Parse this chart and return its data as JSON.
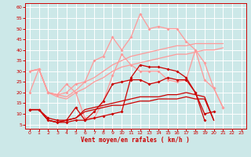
{
  "bg_color": "#cce8e8",
  "grid_color": "#ffffff",
  "xlabel": "Vent moyen/en rafales ( km/h )",
  "xlabel_color": "#cc0000",
  "tick_color": "#cc0000",
  "xlim": [
    -0.5,
    23.5
  ],
  "ylim": [
    3,
    62
  ],
  "yticks": [
    5,
    10,
    15,
    20,
    25,
    30,
    35,
    40,
    45,
    50,
    55,
    60
  ],
  "xticks": [
    0,
    1,
    2,
    3,
    4,
    5,
    6,
    7,
    8,
    9,
    10,
    11,
    12,
    13,
    14,
    15,
    16,
    17,
    18,
    19,
    20,
    21,
    22,
    23
  ],
  "lines": [
    {
      "x": [
        0,
        1,
        2,
        3,
        4,
        5,
        6,
        7,
        8,
        9,
        10,
        11,
        12,
        13,
        14,
        15,
        16,
        17,
        18,
        19,
        20,
        21,
        22,
        23
      ],
      "y": [
        30,
        31,
        20,
        19,
        18,
        21,
        25,
        27,
        30,
        33,
        35,
        37,
        38,
        39,
        40,
        41,
        42,
        42,
        43,
        43,
        43,
        43,
        null,
        null
      ],
      "color": "#ff9999",
      "marker": null,
      "markersize": 0,
      "linewidth": 0.9,
      "zorder": 2
    },
    {
      "x": [
        0,
        1,
        2,
        3,
        4,
        5,
        6,
        7,
        8,
        9,
        10,
        11,
        12,
        13,
        14,
        15,
        16,
        17,
        18,
        19,
        20,
        21,
        22,
        23
      ],
      "y": [
        30,
        31,
        20,
        18,
        17,
        20,
        22,
        25,
        27,
        30,
        32,
        33,
        34,
        35,
        36,
        37,
        38,
        38,
        39,
        40,
        40,
        41,
        null,
        null
      ],
      "color": "#ff9999",
      "marker": null,
      "markersize": 0,
      "linewidth": 0.9,
      "zorder": 2
    },
    {
      "x": [
        0,
        1,
        2,
        3,
        4,
        5,
        6,
        7,
        8,
        9,
        10,
        11,
        12,
        13,
        14,
        15,
        16,
        17,
        18,
        19,
        20,
        21,
        22,
        23
      ],
      "y": [
        30,
        31,
        20,
        19,
        20,
        24,
        25,
        35,
        37,
        46,
        40,
        46,
        57,
        50,
        51,
        50,
        50,
        44,
        40,
        34,
        22,
        13,
        null,
        null
      ],
      "color": "#ff9999",
      "marker": "D",
      "markersize": 2.0,
      "linewidth": 0.9,
      "zorder": 3
    },
    {
      "x": [
        0,
        1,
        2,
        3,
        4,
        5,
        6,
        7,
        8,
        9,
        10,
        11,
        12,
        13,
        14,
        15,
        16,
        17,
        18,
        19,
        20,
        21,
        22,
        23
      ],
      "y": [
        20,
        31,
        20,
        19,
        24,
        20,
        8,
        8,
        16,
        28,
        38,
        33,
        30,
        30,
        30,
        26,
        25,
        26,
        40,
        26,
        22,
        13,
        null,
        null
      ],
      "color": "#ff9999",
      "marker": "D",
      "markersize": 2.0,
      "linewidth": 0.9,
      "zorder": 3
    },
    {
      "x": [
        0,
        1,
        2,
        3,
        4,
        5,
        6,
        7,
        8,
        9,
        10,
        11,
        12,
        13,
        14,
        15,
        16,
        17,
        18,
        19,
        20,
        21,
        22,
        23
      ],
      "y": [
        12,
        12,
        7,
        6,
        7,
        8,
        12,
        13,
        14,
        15,
        16,
        17,
        18,
        18,
        18,
        19,
        19,
        20,
        19,
        18,
        7,
        null,
        null,
        null
      ],
      "color": "#cc0000",
      "marker": null,
      "markersize": 0,
      "linewidth": 0.9,
      "zorder": 4
    },
    {
      "x": [
        0,
        1,
        2,
        3,
        4,
        5,
        6,
        7,
        8,
        9,
        10,
        11,
        12,
        13,
        14,
        15,
        16,
        17,
        18,
        19,
        20,
        21,
        22,
        23
      ],
      "y": [
        12,
        12,
        7,
        6,
        7,
        8,
        11,
        12,
        13,
        14,
        14,
        15,
        16,
        16,
        17,
        17,
        17,
        18,
        17,
        17,
        7,
        null,
        null,
        null
      ],
      "color": "#cc0000",
      "marker": null,
      "markersize": 0,
      "linewidth": 0.9,
      "zorder": 4
    },
    {
      "x": [
        0,
        1,
        2,
        3,
        4,
        5,
        6,
        7,
        8,
        9,
        10,
        11,
        12,
        13,
        14,
        15,
        16,
        17,
        18,
        19,
        20,
        21,
        22,
        23
      ],
      "y": [
        12,
        12,
        7,
        6,
        6,
        7,
        7,
        8,
        9,
        10,
        11,
        27,
        33,
        32,
        32,
        31,
        30,
        27,
        20,
        10,
        11,
        null,
        null,
        null
      ],
      "color": "#cc0000",
      "marker": "D",
      "markersize": 2.0,
      "linewidth": 0.9,
      "zorder": 5
    },
    {
      "x": [
        0,
        1,
        2,
        3,
        4,
        5,
        6,
        7,
        8,
        9,
        10,
        11,
        12,
        13,
        14,
        15,
        16,
        17,
        18,
        19,
        20,
        21,
        22,
        23
      ],
      "y": [
        12,
        12,
        8,
        7,
        7,
        13,
        7,
        11,
        16,
        24,
        25,
        26,
        26,
        24,
        25,
        27,
        26,
        26,
        20,
        7,
        null,
        null,
        null,
        null
      ],
      "color": "#cc0000",
      "marker": "D",
      "markersize": 2.0,
      "linewidth": 0.9,
      "zorder": 5
    }
  ]
}
